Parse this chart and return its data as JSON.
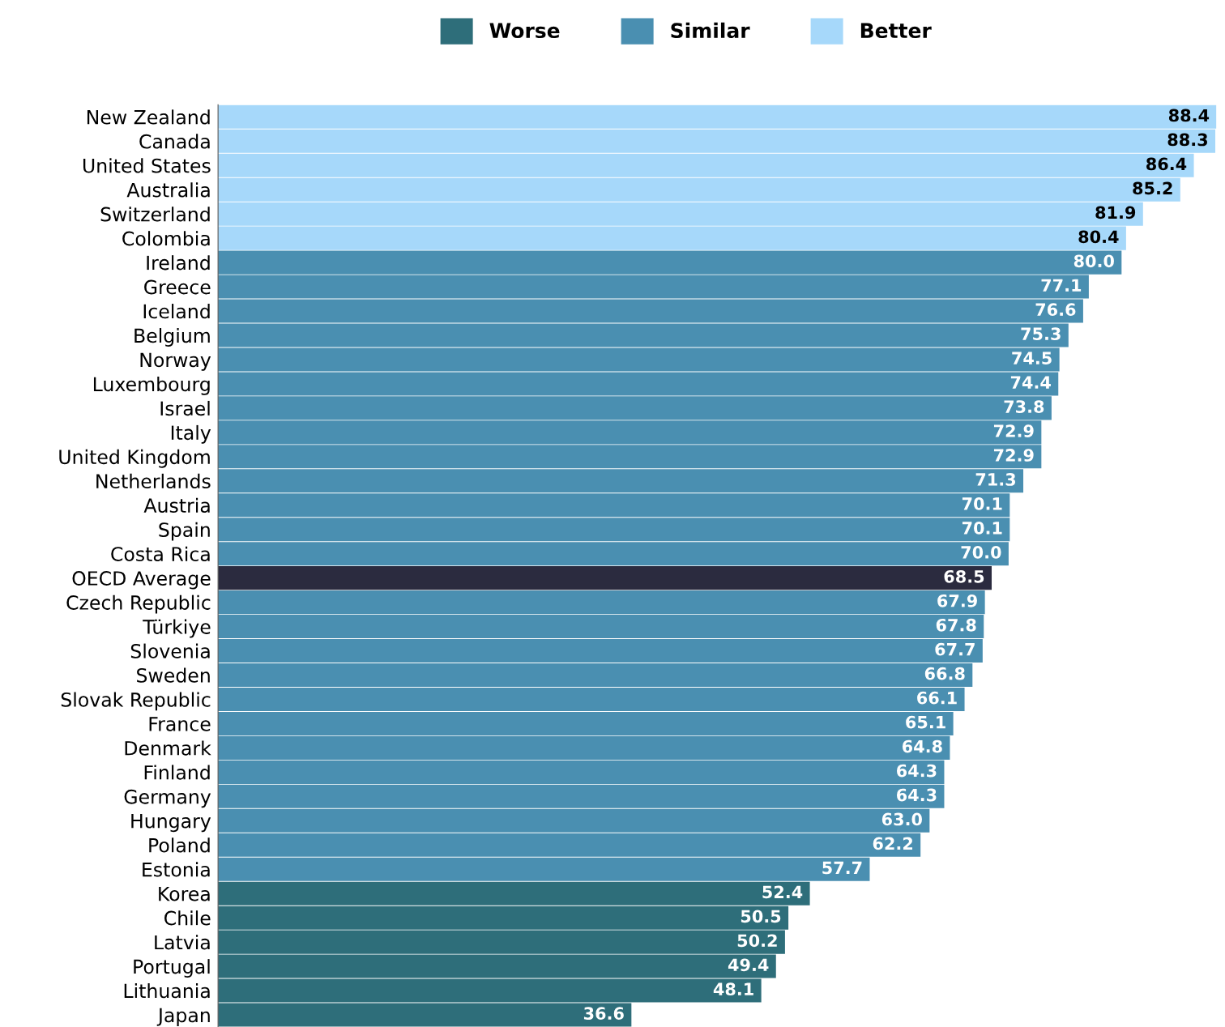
{
  "chart_data": {
    "type": "bar",
    "orientation": "horizontal",
    "legend": "top",
    "categories": [
      "New Zealand",
      "Canada",
      "United States",
      "Australia",
      "Switzerland",
      "Colombia",
      "Ireland",
      "Greece",
      "Iceland",
      "Belgium",
      "Norway",
      "Luxembourg",
      "Israel",
      "Italy",
      "United Kingdom",
      "Netherlands",
      "Austria",
      "Spain",
      "Costa Rica",
      "OECD Average",
      "Czech Republic",
      "Türkiye",
      "Slovenia",
      "Sweden",
      "Slovak Republic",
      "France",
      "Denmark",
      "Finland",
      "Germany",
      "Hungary",
      "Poland",
      "Estonia",
      "Korea",
      "Chile",
      "Latvia",
      "Portugal",
      "Lithuania",
      "Japan"
    ],
    "series": [
      {
        "name": "Worse",
        "color": "#2e6e7a",
        "values": [
          null,
          null,
          null,
          null,
          null,
          null,
          null,
          null,
          null,
          null,
          null,
          null,
          null,
          null,
          null,
          null,
          null,
          null,
          null,
          null,
          null,
          null,
          null,
          null,
          null,
          null,
          null,
          null,
          null,
          null,
          null,
          null,
          52.4,
          50.5,
          50.2,
          49.4,
          48.1,
          36.6
        ],
        "value_labels": [
          null,
          null,
          null,
          null,
          null,
          null,
          null,
          null,
          null,
          null,
          null,
          null,
          null,
          null,
          null,
          null,
          null,
          null,
          null,
          null,
          null,
          null,
          null,
          null,
          null,
          null,
          null,
          null,
          null,
          null,
          null,
          null,
          "52.4",
          "50.5",
          "50.2",
          "49.4",
          "48.1",
          "36.6"
        ]
      },
      {
        "name": "Similar",
        "color": "#4a8fb1",
        "values": [
          null,
          null,
          null,
          null,
          null,
          null,
          80.0,
          77.1,
          76.6,
          75.3,
          74.5,
          74.4,
          73.8,
          72.9,
          72.9,
          71.3,
          70.1,
          70.1,
          70.0,
          null,
          67.9,
          67.8,
          67.7,
          66.8,
          66.1,
          65.1,
          64.8,
          64.3,
          64.3,
          63.0,
          62.2,
          57.7,
          null,
          null,
          null,
          null,
          null,
          null
        ],
        "value_labels": [
          null,
          null,
          null,
          null,
          null,
          null,
          "80.0",
          "77.1",
          "76.6",
          "75.3",
          "74.5",
          "74.4",
          "73.8",
          "72.9",
          "72.9",
          "71.3",
          "70.1",
          "70.1",
          "70.0",
          null,
          "67.9",
          "67.8",
          "67.7",
          "66.8",
          "66.1",
          "65.1",
          "64.8",
          "64.3",
          "64.3",
          "63.0",
          "62.2",
          "57.7",
          null,
          null,
          null,
          null,
          null,
          null
        ]
      },
      {
        "name": "Better",
        "color": "#a6d8fa",
        "values": [
          88.4,
          88.3,
          86.4,
          85.2,
          81.9,
          80.4,
          null,
          null,
          null,
          null,
          null,
          null,
          null,
          null,
          null,
          null,
          null,
          null,
          null,
          null,
          null,
          null,
          null,
          null,
          null,
          null,
          null,
          null,
          null,
          null,
          null,
          null,
          null,
          null,
          null,
          null,
          null,
          null
        ],
        "value_labels": [
          "88.4",
          "88.3",
          "86.4",
          "85.2",
          "81.9",
          "80.4",
          null,
          null,
          null,
          null,
          null,
          null,
          null,
          null,
          null,
          null,
          null,
          null,
          null,
          null,
          null,
          null,
          null,
          null,
          null,
          null,
          null,
          null,
          null,
          null,
          null,
          null,
          null,
          null,
          null,
          null,
          null,
          null
        ]
      },
      {
        "color": "#2b2b3f",
        "values": [
          null,
          null,
          null,
          null,
          null,
          null,
          null,
          null,
          null,
          null,
          null,
          null,
          null,
          null,
          null,
          null,
          null,
          null,
          null,
          68.5,
          null,
          null,
          null,
          null,
          null,
          null,
          null,
          null,
          null,
          null,
          null,
          null,
          null,
          null,
          null,
          null,
          null,
          null
        ],
        "value_labels": [
          null,
          null,
          null,
          null,
          null,
          null,
          null,
          null,
          null,
          null,
          null,
          null,
          null,
          null,
          null,
          null,
          null,
          null,
          null,
          "68.5",
          null,
          null,
          null,
          null,
          null,
          null,
          null,
          null,
          null,
          null,
          null,
          null,
          null,
          null,
          null,
          null,
          null,
          null
        ]
      }
    ]
  }
}
